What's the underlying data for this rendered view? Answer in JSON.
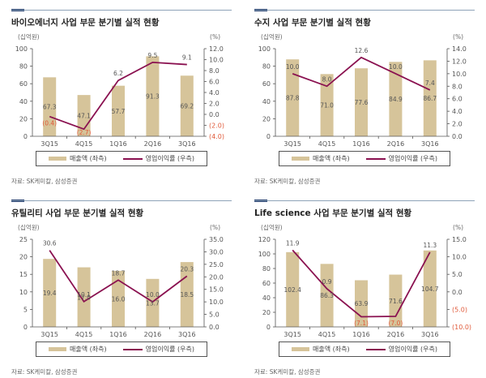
{
  "colors": {
    "bar": "#d6c49a",
    "line": "#8a1150",
    "negative_label": "#e05a3a",
    "axis": "#555555",
    "header_rule": "#8ea3b8",
    "header_accent": "#1f3a6b"
  },
  "chart_data": [
    {
      "type": "bar",
      "title": "바이오에너지 사업 부문 분기별 실적 현황",
      "categories": [
        "3Q15",
        "4Q15",
        "1Q16",
        "2Q16",
        "3Q16"
      ],
      "left_unit": "(십억원)",
      "right_unit": "(%)",
      "series": [
        {
          "name": "매출액 (좌측)",
          "axis": "left",
          "type": "bar",
          "values": [
            67.3,
            47.1,
            57.7,
            91.3,
            69.2
          ],
          "labels": [
            "67.3",
            "47.1",
            "57.7",
            "91.3",
            "69.2"
          ]
        },
        {
          "name": "영업이익률 (우측)",
          "axis": "right",
          "type": "line",
          "values": [
            -0.4,
            -2.7,
            6.2,
            9.5,
            9.1
          ],
          "labels": [
            "(0.4)",
            "(2.7)",
            "6.2",
            "9.5",
            "9.1"
          ]
        }
      ],
      "left_ylim": [
        0,
        100
      ],
      "left_ticks": [
        "0",
        "20",
        "40",
        "60",
        "80",
        "100"
      ],
      "left_tick_values": [
        0,
        20,
        40,
        60,
        80,
        100
      ],
      "right_ylim": [
        -4,
        12
      ],
      "right_ticks": [
        "(4.0)",
        "(2.0)",
        "0.0",
        "2.0",
        "4.0",
        "6.0",
        "8.0",
        "10.0",
        "12.0"
      ],
      "right_tick_values": [
        -4,
        -2,
        0,
        2,
        4,
        6,
        8,
        10,
        12
      ],
      "legend": [
        "매출액 (좌측)",
        "영업이익률 (우측)"
      ],
      "legend_position": "bottom",
      "source": "자료: SK케미칼, 삼성증권"
    },
    {
      "type": "bar",
      "title": "수지 사업 부문 분기별 실적 현황",
      "categories": [
        "3Q15",
        "4Q15",
        "1Q16",
        "2Q16",
        "3Q16"
      ],
      "left_unit": "(십억원)",
      "right_unit": "(%)",
      "series": [
        {
          "name": "매출액 (좌측)",
          "axis": "left",
          "type": "bar",
          "values": [
            87.8,
            71.0,
            77.6,
            84.9,
            86.7
          ],
          "labels": [
            "87.8",
            "71.0",
            "77.6",
            "84.9",
            "86.7"
          ]
        },
        {
          "name": "영업이익률 (우측)",
          "axis": "right",
          "type": "line",
          "values": [
            10.0,
            8.0,
            12.6,
            10.0,
            7.4
          ],
          "labels": [
            "10.0",
            "8.0",
            "12.6",
            "10.0",
            "7.4"
          ]
        }
      ],
      "left_ylim": [
        0,
        100
      ],
      "left_ticks": [
        "0",
        "20",
        "40",
        "60",
        "80",
        "100"
      ],
      "left_tick_values": [
        0,
        20,
        40,
        60,
        80,
        100
      ],
      "right_ylim": [
        0,
        14
      ],
      "right_ticks": [
        "0.0",
        "2.0",
        "4.0",
        "6.0",
        "8.0",
        "10.0",
        "12.0",
        "14.0"
      ],
      "right_tick_values": [
        0,
        2,
        4,
        6,
        8,
        10,
        12,
        14
      ],
      "legend": [
        "매출액 (좌측)",
        "영업이익률 (우측)"
      ],
      "legend_position": "bottom",
      "source": "자료: SK케미칼, 삼성증권"
    },
    {
      "type": "bar",
      "title": "유틸리티 사업 부문 분기별 실적 현황",
      "categories": [
        "3Q15",
        "4Q15",
        "1Q16",
        "2Q16",
        "3Q16"
      ],
      "left_unit": "(십억원)",
      "right_unit": "(%)",
      "series": [
        {
          "name": "매출액 (좌측)",
          "axis": "left",
          "type": "bar",
          "values": [
            19.4,
            17.0,
            16.0,
            13.7,
            18.5
          ],
          "labels": [
            "19.4",
            "17.0",
            "16.0",
            "13.7",
            "18.5"
          ]
        },
        {
          "name": "영업이익률 (우측)",
          "axis": "right",
          "type": "line",
          "values": [
            30.6,
            10.1,
            18.7,
            10.0,
            20.3
          ],
          "labels": [
            "30.6",
            "10.1",
            "18.7",
            "10.0",
            "20.3"
          ]
        }
      ],
      "left_ylim": [
        0,
        25
      ],
      "left_ticks": [
        "0",
        "5",
        "10",
        "15",
        "20",
        "25"
      ],
      "left_tick_values": [
        0,
        5,
        10,
        15,
        20,
        25
      ],
      "right_ylim": [
        0,
        35
      ],
      "right_ticks": [
        "0.0",
        "5.0",
        "10.0",
        "15.0",
        "20.0",
        "25.0",
        "30.0",
        "35.0"
      ],
      "right_tick_values": [
        0,
        5,
        10,
        15,
        20,
        25,
        30,
        35
      ],
      "legend": [
        "매출액 (좌측)",
        "영업이익률 (우측)"
      ],
      "legend_position": "bottom",
      "source": "자료: SK케미칼, 삼성증권"
    },
    {
      "type": "bar",
      "title": "Life science 사업 부문 분기별 실적 현황",
      "categories": [
        "3Q15",
        "4Q15",
        "1Q16",
        "2Q16",
        "3Q16"
      ],
      "left_unit": "(십억원)",
      "right_unit": "(%)",
      "series": [
        {
          "name": "매출액 (좌측)",
          "axis": "left",
          "type": "bar",
          "values": [
            102.4,
            86.3,
            63.9,
            71.6,
            104.7
          ],
          "labels": [
            "102.4",
            "86.3",
            "63.9",
            "71.6",
            "104.7"
          ]
        },
        {
          "name": "영업이익률 (우측)",
          "axis": "right",
          "type": "line",
          "values": [
            11.9,
            0.9,
            -7.1,
            -7.0,
            11.3
          ],
          "labels": [
            "11.9",
            "0.9",
            "(7.1)",
            "(7.0)",
            "11.3"
          ]
        }
      ],
      "left_ylim": [
        0,
        120
      ],
      "left_ticks": [
        "0",
        "20",
        "40",
        "60",
        "80",
        "100",
        "120"
      ],
      "left_tick_values": [
        0,
        20,
        40,
        60,
        80,
        100,
        120
      ],
      "right_ylim": [
        -10,
        15
      ],
      "right_ticks": [
        "(10.0)",
        "(5.0)",
        "0.0",
        "5.0",
        "10.0",
        "15.0"
      ],
      "right_tick_values": [
        -10,
        -5,
        0,
        5,
        10,
        15
      ],
      "legend": [
        "매출액 (좌측)",
        "영업이익률 (우측)"
      ],
      "legend_position": "bottom",
      "source": "자료: SK케미칼, 삼성증권"
    }
  ]
}
